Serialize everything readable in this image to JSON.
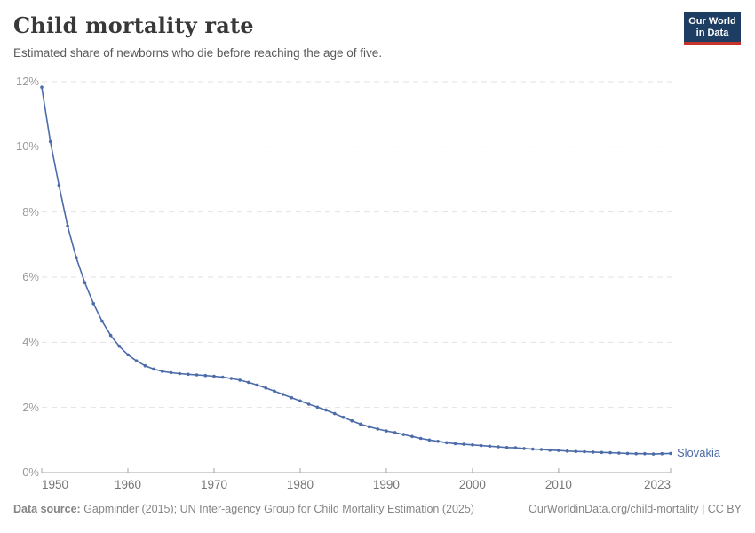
{
  "header": {
    "title": "Child mortality rate",
    "subtitle": "Estimated share of newborns who die before reaching the age of five.",
    "logo": {
      "line1": "Our World",
      "line2": "in Data"
    }
  },
  "chart_data": {
    "type": "line",
    "title": "Child mortality rate",
    "subtitle": "Estimated share of newborns who die before reaching the age of five.",
    "xlabel": "",
    "ylabel": "",
    "xlim": [
      1950,
      2023
    ],
    "ylim": [
      0,
      12
    ],
    "x_ticks": [
      1950,
      1960,
      1970,
      1980,
      1990,
      2000,
      2010,
      2023
    ],
    "y_ticks": [
      0,
      2,
      4,
      6,
      8,
      10,
      12
    ],
    "y_tick_suffix": "%",
    "grid": "horizontal-dashed",
    "legend_position": "end-of-line-label",
    "series": [
      {
        "name": "Slovakia",
        "color": "#4c6ba9",
        "points": [
          [
            1950,
            11.83
          ],
          [
            1951,
            10.16
          ],
          [
            1952,
            8.82
          ],
          [
            1953,
            7.57
          ],
          [
            1954,
            6.6
          ],
          [
            1955,
            5.83
          ],
          [
            1956,
            5.19
          ],
          [
            1957,
            4.65
          ],
          [
            1958,
            4.21
          ],
          [
            1959,
            3.88
          ],
          [
            1960,
            3.62
          ],
          [
            1961,
            3.43
          ],
          [
            1962,
            3.28
          ],
          [
            1963,
            3.18
          ],
          [
            1964,
            3.11
          ],
          [
            1965,
            3.07
          ],
          [
            1966,
            3.04
          ],
          [
            1967,
            3.02
          ],
          [
            1968,
            3.0
          ],
          [
            1969,
            2.98
          ],
          [
            1970,
            2.96
          ],
          [
            1971,
            2.93
          ],
          [
            1972,
            2.89
          ],
          [
            1973,
            2.84
          ],
          [
            1974,
            2.77
          ],
          [
            1975,
            2.69
          ],
          [
            1976,
            2.6
          ],
          [
            1977,
            2.5
          ],
          [
            1978,
            2.4
          ],
          [
            1979,
            2.3
          ],
          [
            1980,
            2.2
          ],
          [
            1981,
            2.1
          ],
          [
            1982,
            2.01
          ],
          [
            1983,
            1.92
          ],
          [
            1984,
            1.81
          ],
          [
            1985,
            1.7
          ],
          [
            1986,
            1.59
          ],
          [
            1987,
            1.49
          ],
          [
            1988,
            1.41
          ],
          [
            1989,
            1.34
          ],
          [
            1990,
            1.28
          ],
          [
            1991,
            1.23
          ],
          [
            1992,
            1.17
          ],
          [
            1993,
            1.11
          ],
          [
            1994,
            1.05
          ],
          [
            1995,
            1.0
          ],
          [
            1996,
            0.96
          ],
          [
            1997,
            0.92
          ],
          [
            1998,
            0.89
          ],
          [
            1999,
            0.87
          ],
          [
            2000,
            0.85
          ],
          [
            2001,
            0.83
          ],
          [
            2002,
            0.81
          ],
          [
            2003,
            0.79
          ],
          [
            2004,
            0.77
          ],
          [
            2005,
            0.76
          ],
          [
            2006,
            0.74
          ],
          [
            2007,
            0.72
          ],
          [
            2008,
            0.71
          ],
          [
            2009,
            0.69
          ],
          [
            2010,
            0.68
          ],
          [
            2011,
            0.66
          ],
          [
            2012,
            0.65
          ],
          [
            2013,
            0.64
          ],
          [
            2014,
            0.63
          ],
          [
            2015,
            0.62
          ],
          [
            2016,
            0.61
          ],
          [
            2017,
            0.6
          ],
          [
            2018,
            0.59
          ],
          [
            2019,
            0.58
          ],
          [
            2020,
            0.58
          ],
          [
            2021,
            0.57
          ],
          [
            2022,
            0.58
          ],
          [
            2023,
            0.59
          ]
        ]
      }
    ]
  },
  "footer": {
    "datasource_label": "Data source:",
    "datasource_text": " Gapminder (2015); UN Inter-agency Group for Child Mortality Estimation (2025)",
    "link": "OurWorldinData.org/child-mortality | CC BY"
  },
  "colors": {
    "line": "#4c6ba9",
    "series_label": "#4c6ba9",
    "grid": "#e2e2e2",
    "axis": "#a5a5a5",
    "y_tick_text": "#9a9a9a",
    "x_tick_text": "#757575",
    "title": "#383838",
    "subtitle": "#595959",
    "footer": "#858585",
    "logo_bg": "#1d3d63",
    "logo_red": "#c5332c"
  }
}
